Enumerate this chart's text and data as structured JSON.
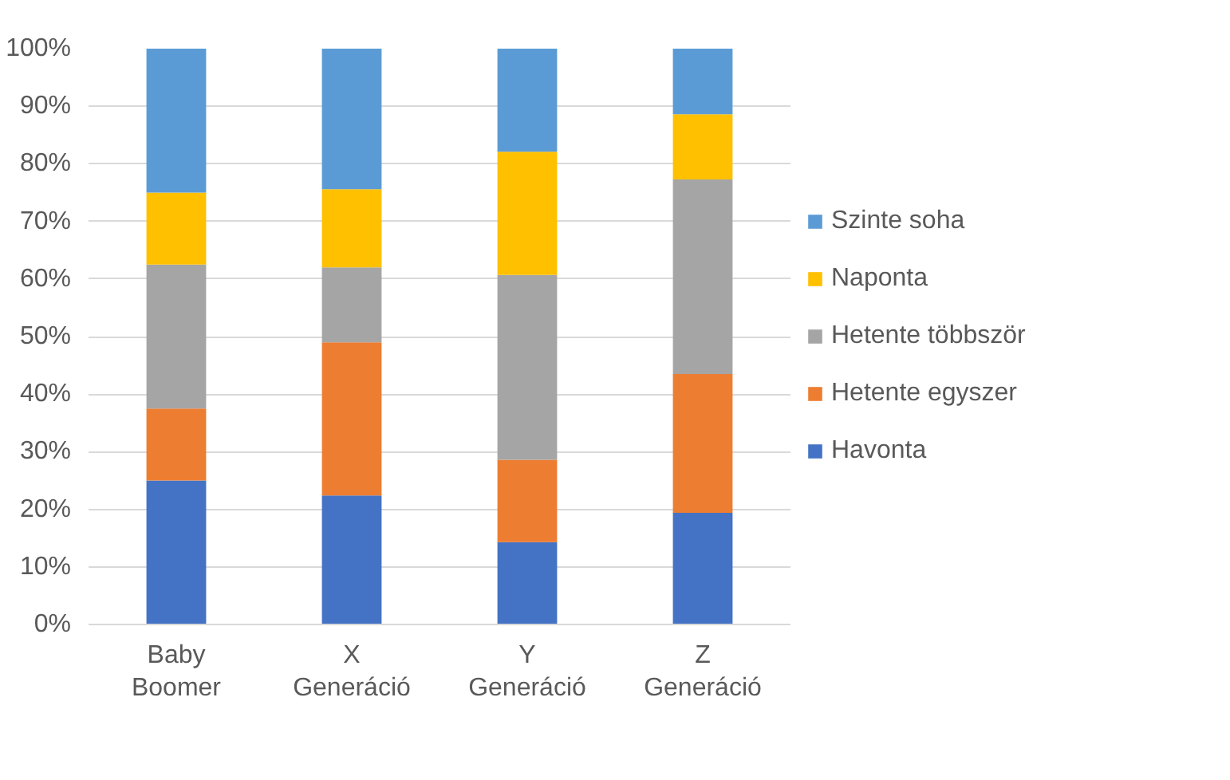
{
  "chart_data": {
    "type": "bar",
    "stacked": true,
    "categories": [
      "Baby Boomer",
      "X Generáció",
      "Y Generáció",
      "Z Generáció"
    ],
    "series": [
      {
        "name": "Havonta",
        "color": "#4472c4",
        "values": [
          25,
          22.4,
          14.3,
          19.4
        ]
      },
      {
        "name": "Hetente egyszer",
        "color": "#ed7d31",
        "values": [
          12.5,
          26.6,
          14.3,
          24.1
        ]
      },
      {
        "name": "Hetente többször",
        "color": "#a5a5a5",
        "values": [
          25,
          13,
          32.1,
          33.8
        ]
      },
      {
        "name": "Naponta",
        "color": "#ffc000",
        "values": [
          12.5,
          13.6,
          21.4,
          11.3
        ]
      },
      {
        "name": "Szinte soha",
        "color": "#5b9bd5",
        "values": [
          25,
          24.4,
          17.9,
          11.4
        ]
      }
    ],
    "ylim": [
      0,
      100
    ],
    "yticks": [
      {
        "value": 0,
        "label": "0%"
      },
      {
        "value": 10,
        "label": "10%"
      },
      {
        "value": 20,
        "label": "20%"
      },
      {
        "value": 30,
        "label": "30%"
      },
      {
        "value": 40,
        "label": "40%"
      },
      {
        "value": 50,
        "label": "50%"
      },
      {
        "value": 60,
        "label": "60%"
      },
      {
        "value": 70,
        "label": "70%"
      },
      {
        "value": 80,
        "label": "80%"
      },
      {
        "value": 90,
        "label": "90%"
      },
      {
        "value": 100,
        "label": "100%"
      }
    ],
    "grid": "y",
    "legend": "right"
  }
}
